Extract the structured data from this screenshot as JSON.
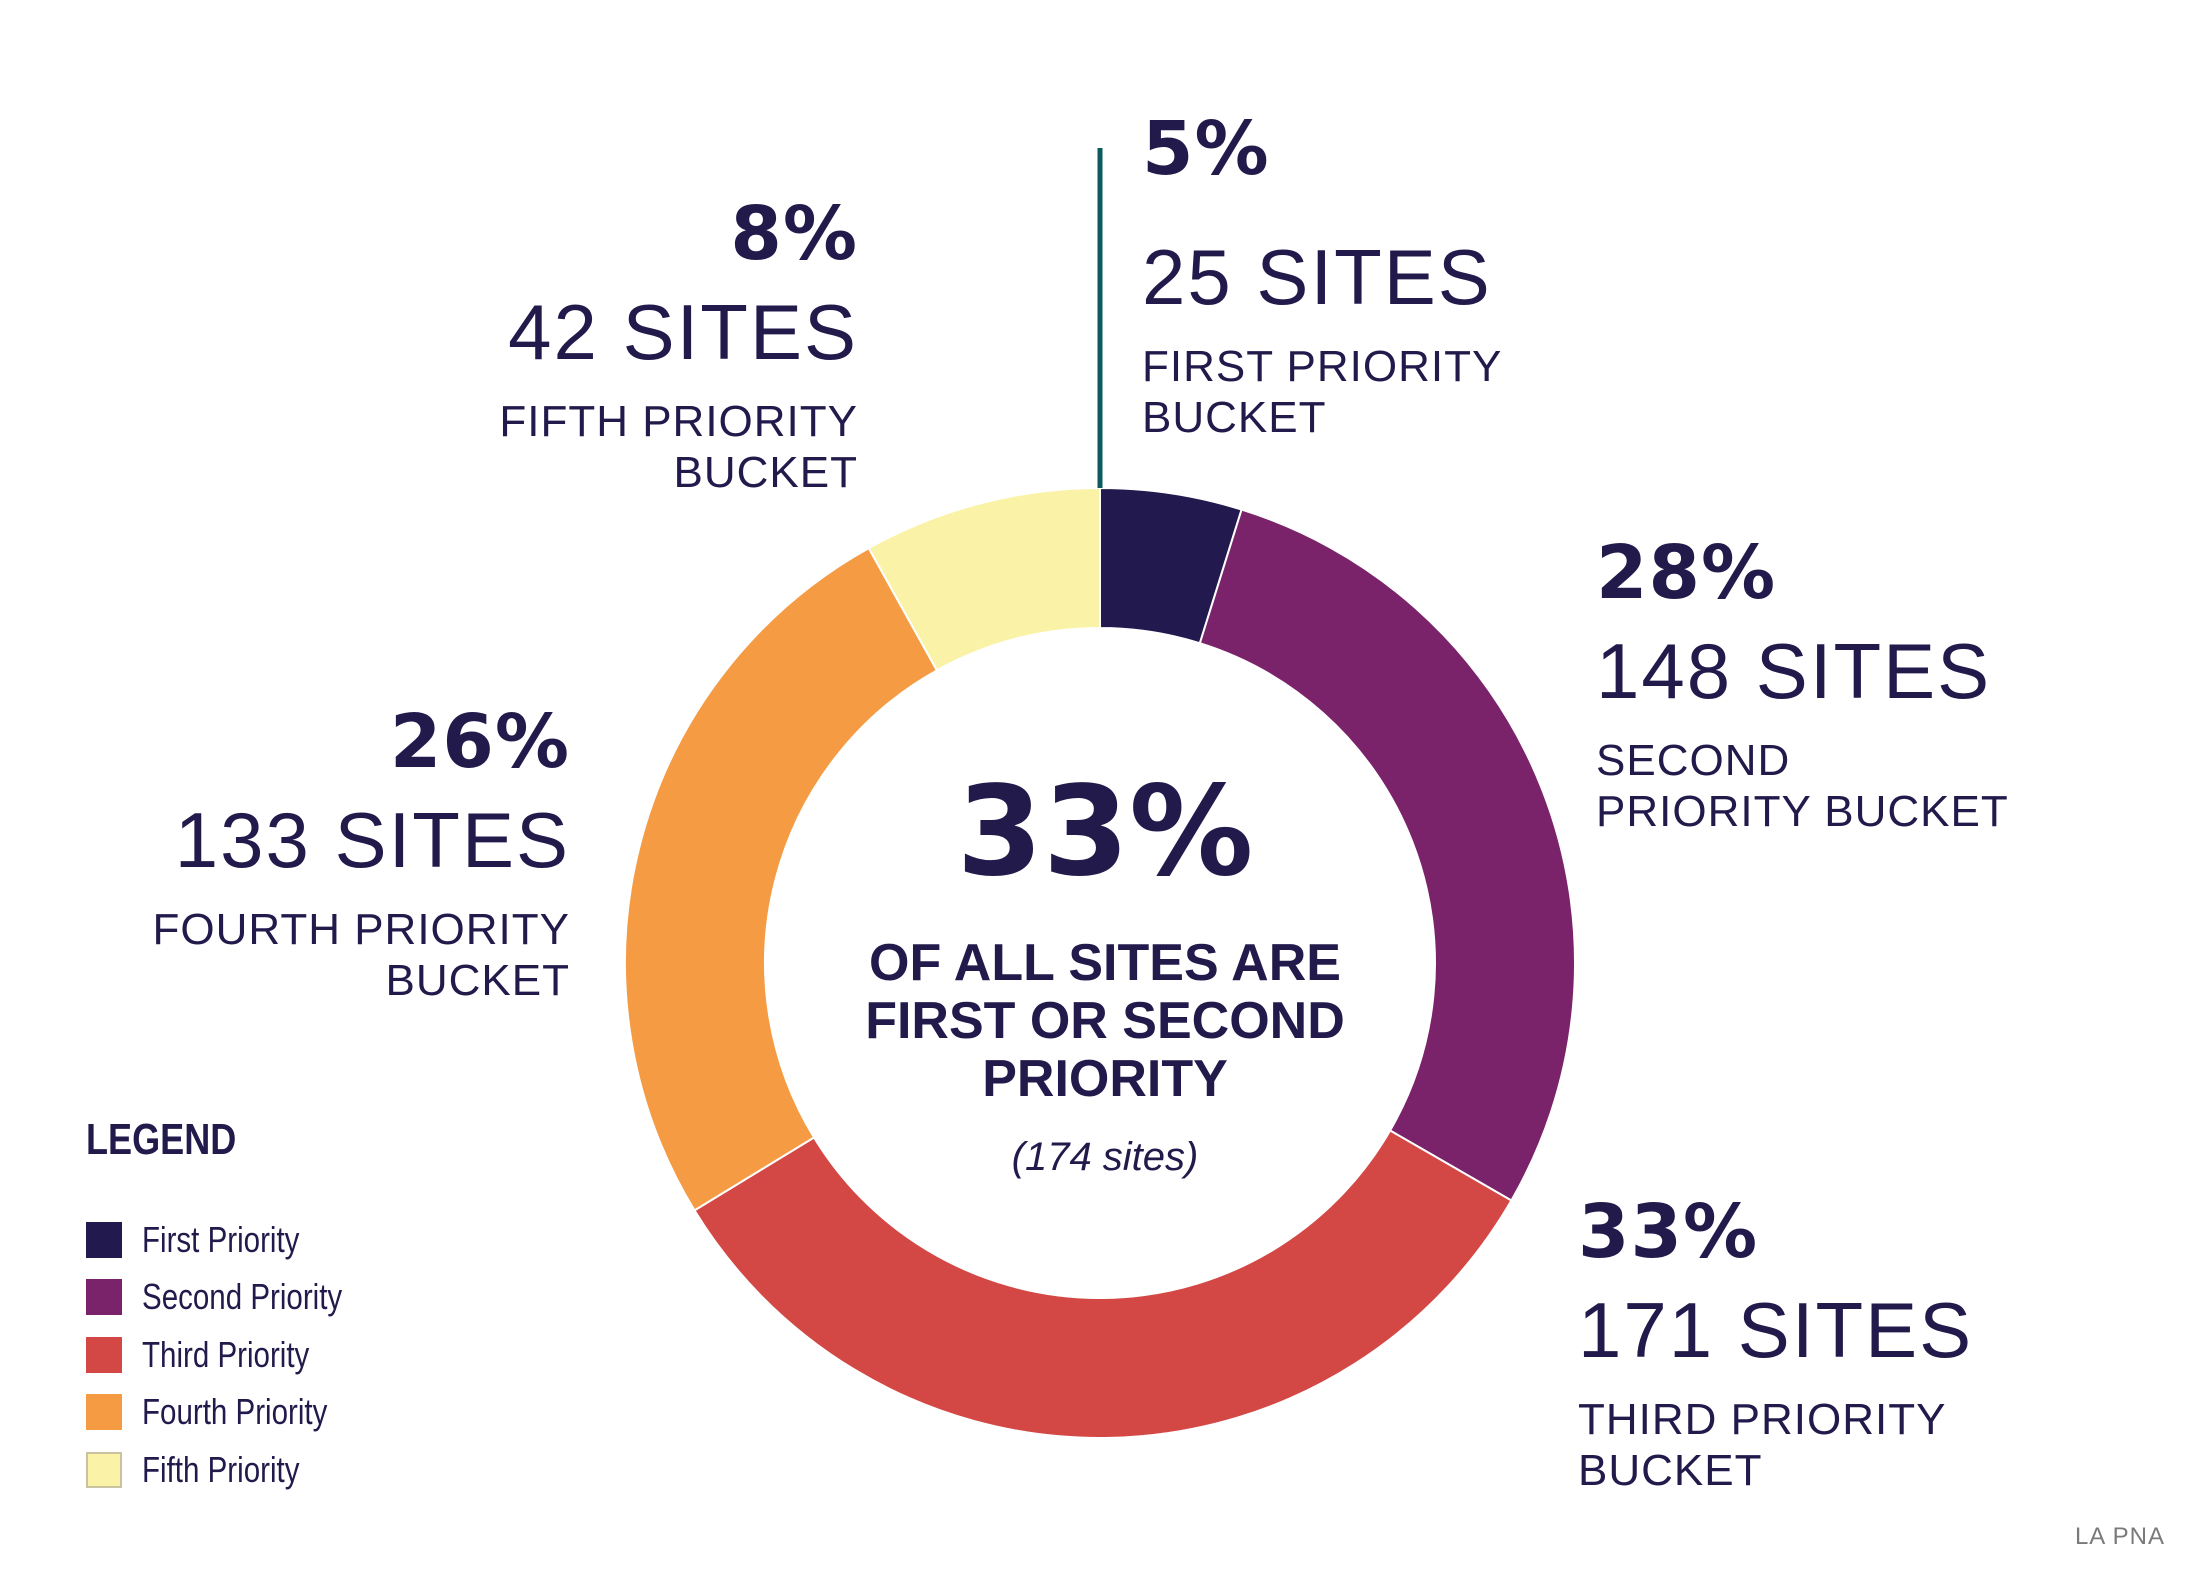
{
  "chart_data": {
    "type": "pie",
    "variant": "donut",
    "categories": [
      "First Priority",
      "Second Priority",
      "Third Priority",
      "Fourth Priority",
      "Fifth Priority"
    ],
    "values": [
      25,
      148,
      171,
      133,
      42
    ],
    "percent_labels": [
      "5%",
      "28%",
      "33%",
      "26%",
      "8%"
    ],
    "sites_labels": [
      "25 SITES",
      "148 SITES",
      "171 SITES",
      "133 SITES",
      "42 SITES"
    ],
    "bucket_labels": [
      "FIRST PRIORITY BUCKET",
      "SECOND PRIORITY BUCKET",
      "THIRD PRIORITY BUCKET",
      "FOURTH PRIORITY BUCKET",
      "FIFTH PRIORITY BUCKET"
    ],
    "colors": [
      "#221a4e",
      "#7a226a",
      "#d34844",
      "#f59b44",
      "#faf3a7"
    ],
    "center": {
      "percent": "33%",
      "text": "OF ALL SITES ARE FIRST OR SECOND PRIORITY",
      "subtext": "(174 sites)"
    },
    "legend": {
      "title": "LEGEND",
      "placement": "bottom-left",
      "entries": [
        "First Priority",
        "Second Priority",
        "Third Priority",
        "Fourth Priority",
        "Fifth Priority"
      ]
    },
    "leader_color": "#0d5b5e"
  },
  "footer": {
    "source": "LA PNA"
  }
}
